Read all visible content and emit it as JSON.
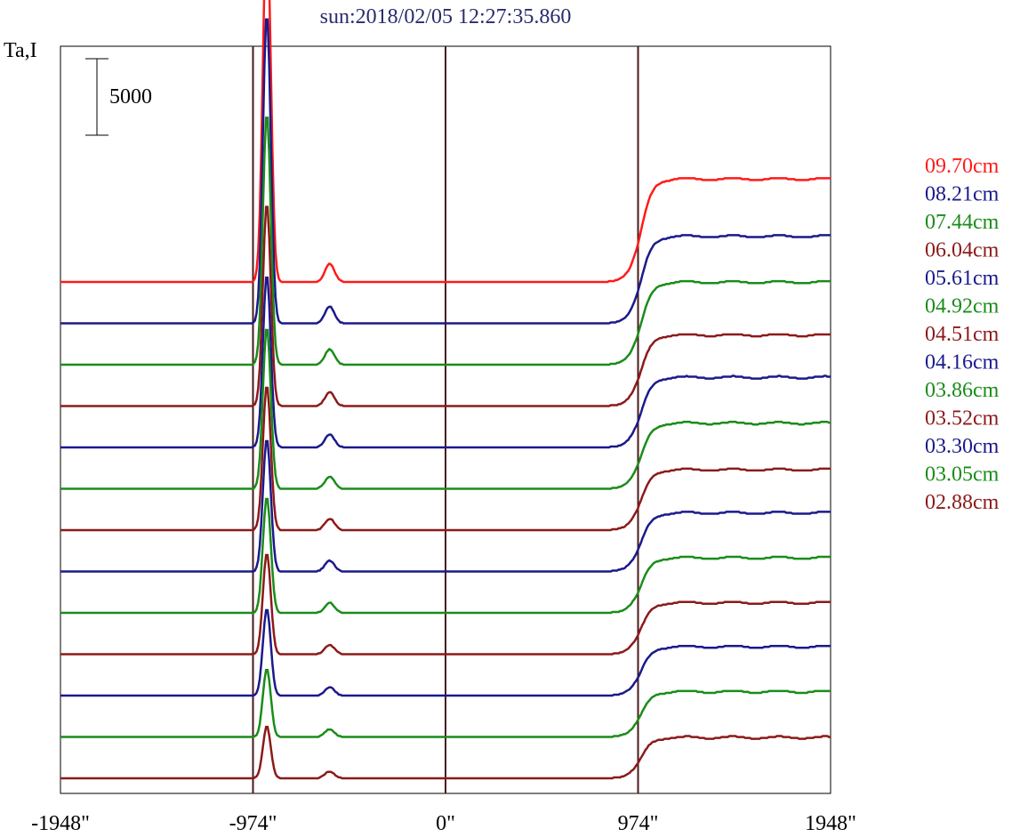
{
  "chart_data": {
    "type": "line",
    "title": "sun:2018/02/05 12:27:35.860",
    "ylabel": "Ta,I",
    "xlabel": "",
    "xlim": [
      -1948,
      1948
    ],
    "x_ticks": [
      -1948,
      -974,
      0,
      974,
      1948
    ],
    "x_tick_labels": [
      "-1948\"",
      "-974\"",
      "0\"",
      "974\"",
      "1948\""
    ],
    "vertical_lines": [
      -974,
      0,
      974
    ],
    "vertical_line_color": "#4a1a1a",
    "scale_bar": {
      "value": 5000,
      "label": "5000"
    },
    "legend_position": "right",
    "colors": {
      "red": "#ff1a1a",
      "blue": "#1a1a8c",
      "green": "#1a8c1a",
      "maroon": "#8c1a1a"
    },
    "series": [
      {
        "name": "09.70cm",
        "color": "#ff1a1a",
        "peak": 23700,
        "bump": 1200,
        "plateau": 11600
      },
      {
        "name": "08.21cm",
        "color": "#1a1a8c",
        "peak": 20300,
        "bump": 1100,
        "plateau": 9800
      },
      {
        "name": "07.44cm",
        "color": "#1a8c1a",
        "peak": 16500,
        "bump": 1000,
        "plateau": 9300
      },
      {
        "name": "06.04cm",
        "color": "#8c1a1a",
        "peak": 13300,
        "bump": 900,
        "plateau": 8000
      },
      {
        "name": "05.61cm",
        "color": "#1a1a8c",
        "peak": 11300,
        "bump": 850,
        "plateau": 7900
      },
      {
        "name": "04.92cm",
        "color": "#1a8c1a",
        "peak": 10600,
        "bump": 800,
        "plateau": 7400
      },
      {
        "name": "04.51cm",
        "color": "#8c1a1a",
        "peak": 9500,
        "bump": 750,
        "plateau": 6800
      },
      {
        "name": "04.16cm",
        "color": "#1a1a8c",
        "peak": 8700,
        "bump": 700,
        "plateau": 6600
      },
      {
        "name": "03.86cm",
        "color": "#1a8c1a",
        "peak": 7600,
        "bump": 650,
        "plateau": 6200
      },
      {
        "name": "03.52cm",
        "color": "#8c1a1a",
        "peak": 6600,
        "bump": 600,
        "plateau": 5800
      },
      {
        "name": "03.30cm",
        "color": "#1a1a8c",
        "peak": 5700,
        "bump": 550,
        "plateau": 5500
      },
      {
        "name": "03.05cm",
        "color": "#1a8c1a",
        "peak": 4500,
        "bump": 500,
        "plateau": 5100
      },
      {
        "name": "02.88cm",
        "color": "#8c1a1a",
        "peak": 3400,
        "bump": 450,
        "plateau": 4600
      }
    ]
  }
}
